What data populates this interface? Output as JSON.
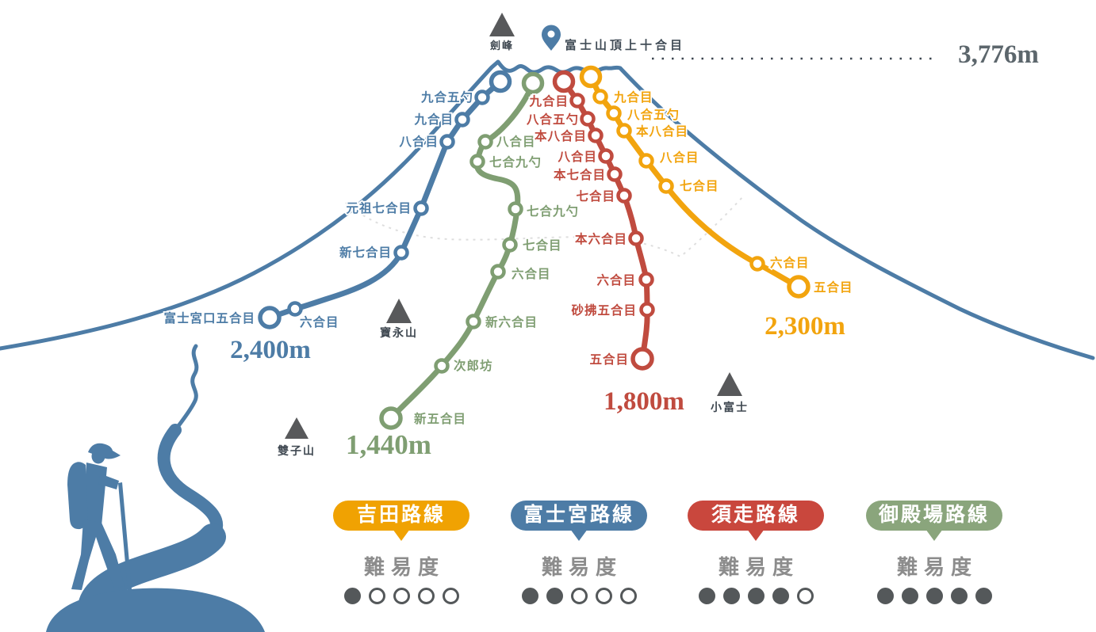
{
  "summit": {
    "peak_label": "劍峰",
    "pin_label": "富士山頂上十合目",
    "elevation": "3,776m"
  },
  "landmarks": [
    {
      "name": "寶永山"
    },
    {
      "name": "雙子山"
    },
    {
      "name": "小富士"
    }
  ],
  "colors": {
    "mountain_outline": "#4d7ca6",
    "yoshida": "#f2a40e",
    "fujinomiya": "#4d7ca6",
    "subashiri": "#c04b3f",
    "gotemba": "#7f9e72",
    "difficulty_dot": "#54585a",
    "summit_text": "#5c666c"
  },
  "routes": {
    "yoshida": {
      "name": "吉田路線",
      "start_elevation": "2,300m",
      "stations": [
        "九合目",
        "八合五勺",
        "本八合目",
        "八合目",
        "七合目",
        "六合目",
        "五合目"
      ]
    },
    "fujinomiya": {
      "name": "富士宮路線",
      "start_elevation": "2,400m",
      "stations": [
        "九合五勺",
        "九合目",
        "八合目",
        "元祖七合目",
        "新七合目",
        "六合目",
        "富士宮口五合目"
      ]
    },
    "subashiri": {
      "name": "須走路線",
      "start_elevation": "1,800m",
      "stations": [
        "九合目",
        "八合五勺",
        "本八合目",
        "八合目",
        "本七合目",
        "七合目",
        "本六合目",
        "六合目",
        "砂拂五合目",
        "五合目"
      ]
    },
    "gotemba": {
      "name": "御殿場路線",
      "start_elevation": "1,440m",
      "stations": [
        "八合目",
        "七合九勺",
        "七合九勺",
        "七合目",
        "六合目",
        "新六合目",
        "次郎坊",
        "新五合目"
      ]
    }
  },
  "legend": [
    {
      "name": "吉田路線",
      "difficulty_label": "難易度",
      "rating": 1,
      "max_rating": 5,
      "color": "#f0a202"
    },
    {
      "name": "富士宮路線",
      "difficulty_label": "難易度",
      "rating": 2,
      "max_rating": 5,
      "color": "#4d7ca6"
    },
    {
      "name": "須走路線",
      "difficulty_label": "難易度",
      "rating": 4,
      "max_rating": 5,
      "color": "#c9473d"
    },
    {
      "name": "御殿場路線",
      "difficulty_label": "難易度",
      "rating": 5,
      "max_rating": 5,
      "color": "#8aa57c"
    }
  ]
}
